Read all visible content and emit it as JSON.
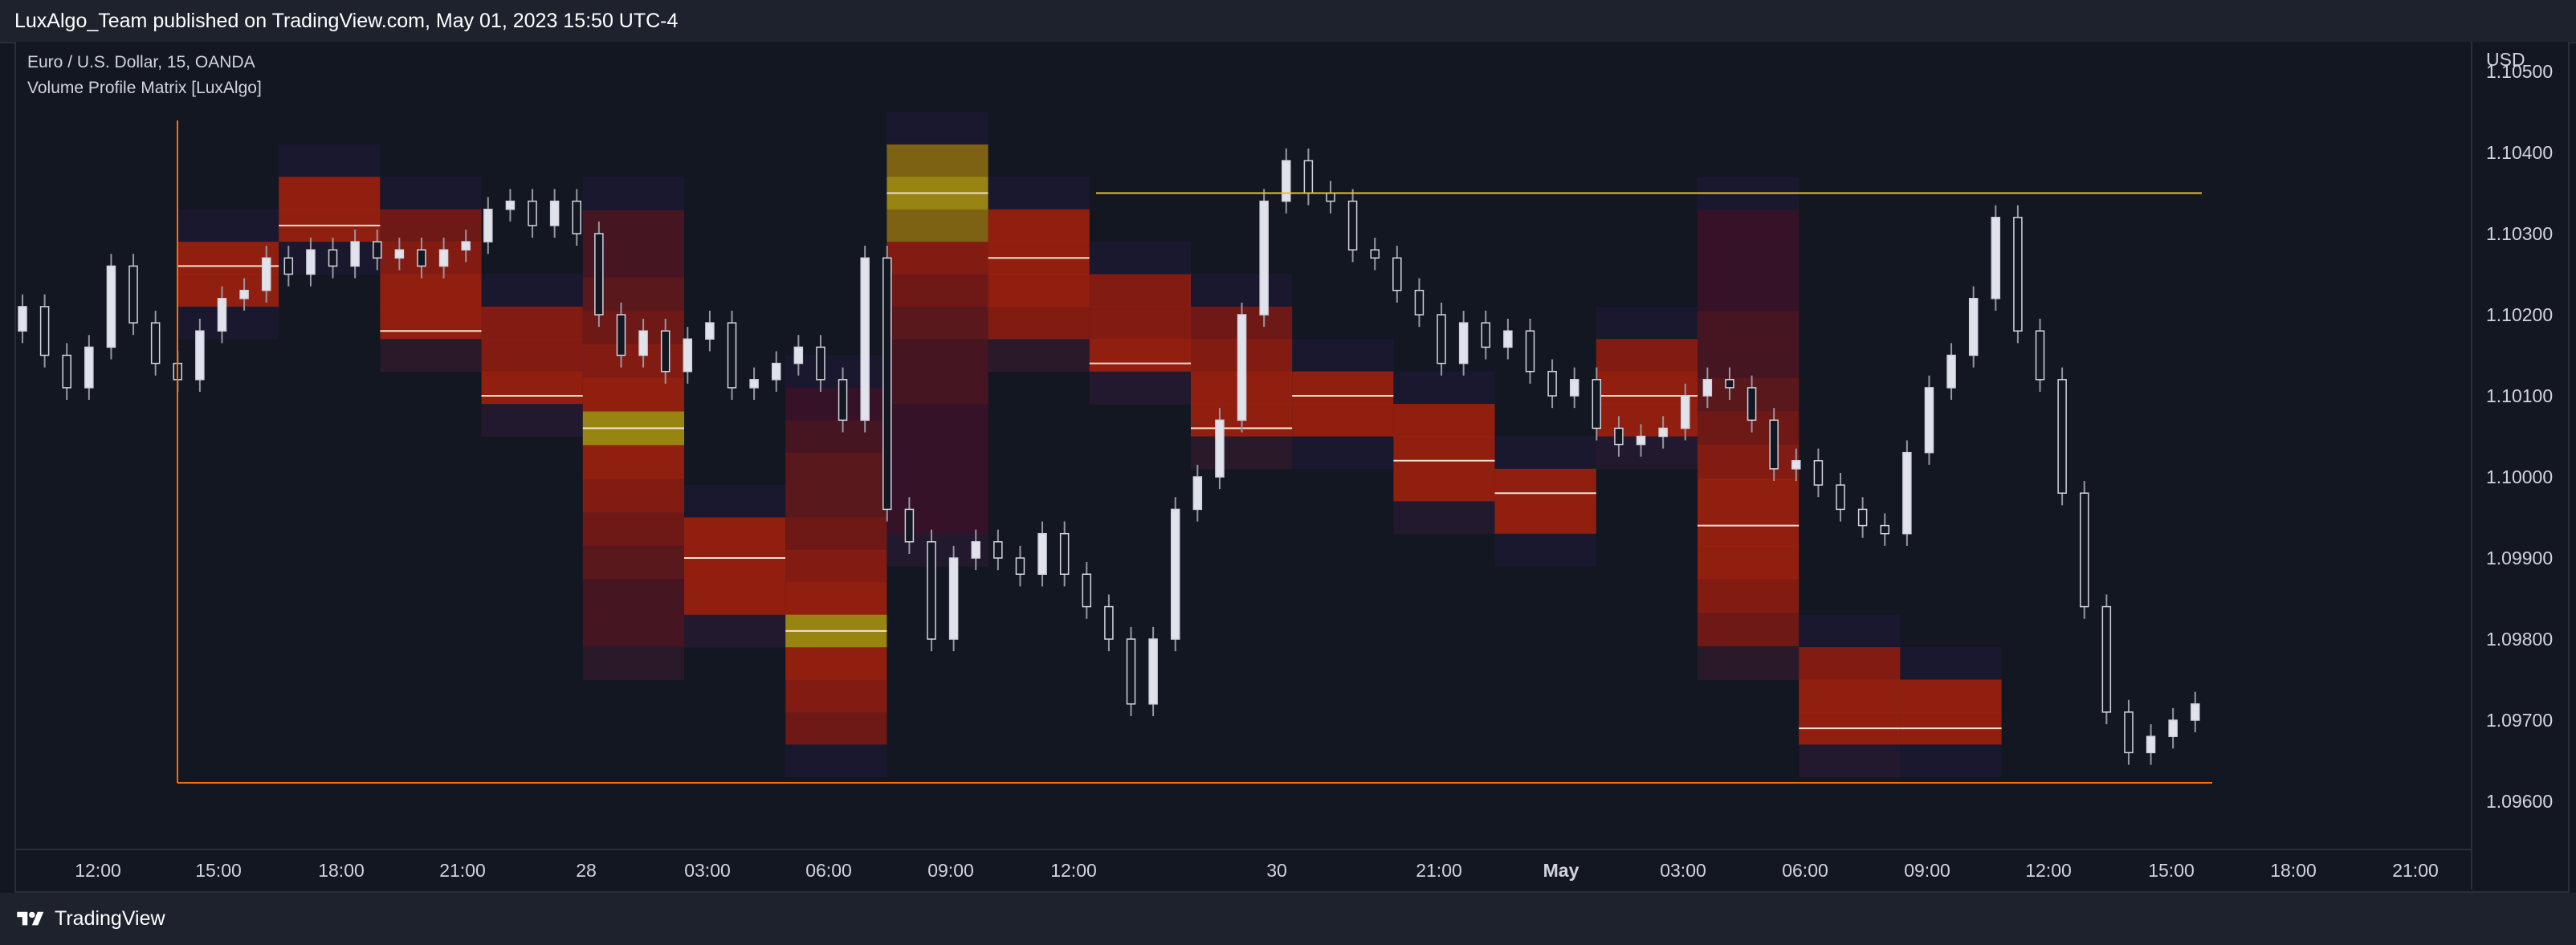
{
  "header": {
    "publish_text": "LuxAlgo_Team published on TradingView.com, May 01, 2023 15:50 UTC-4"
  },
  "legend": {
    "symbol": "Euro / U.S. Dollar, 15, OANDA",
    "indicator": "Volume Profile Matrix [LuxAlgo]"
  },
  "footer": {
    "brand": "TradingView"
  },
  "colors": {
    "background": "#131722",
    "panel": "#1e222d",
    "frame": "#ff6d00",
    "poc_line": "#e6c229",
    "candle": "#d1d4dc"
  },
  "chart_data": {
    "type": "candlestick",
    "title": "Euro / U.S. Dollar, 15, OANDA",
    "indicator": "Volume Profile Matrix [LuxAlgo]",
    "y_axis_unit": "USD",
    "ylim": [
      1.0955,
      1.1051
    ],
    "y_ticks": [
      "1.10500",
      "1.10400",
      "1.10300",
      "1.10200",
      "1.10100",
      "1.10000",
      "1.09900",
      "1.09800",
      "1.09700",
      "1.09600"
    ],
    "x_ticks": [
      "12:00",
      "15:00",
      "18:00",
      "21:00",
      "28",
      "03:00",
      "06:00",
      "09:00",
      "12:00",
      "30",
      "21:00",
      "May",
      "03:00",
      "06:00",
      "09:00",
      "12:00",
      "15:00",
      "18:00",
      "21:00"
    ],
    "series": [
      {
        "name": "Volume Profile Matrix",
        "profiles": [
          {
            "from": 0,
            "to": 1,
            "price_low": 1.1017,
            "price_high": 1.1033,
            "poc": 1.1026
          },
          {
            "from": 1,
            "to": 2,
            "price_low": 1.1025,
            "price_high": 1.1041,
            "poc": 1.1031
          },
          {
            "from": 2,
            "to": 3,
            "price_low": 1.1013,
            "price_high": 1.1037,
            "poc": 1.1018
          },
          {
            "from": 3,
            "to": 4,
            "price_low": 1.1005,
            "price_high": 1.1025,
            "poc": 1.101
          },
          {
            "from": 4,
            "to": 5,
            "price_low": 1.0975,
            "price_high": 1.1037,
            "poc": 1.1006
          },
          {
            "from": 5,
            "to": 6,
            "price_low": 1.0979,
            "price_high": 1.0999,
            "poc": 1.099
          },
          {
            "from": 6,
            "to": 7,
            "price_low": 1.0963,
            "price_high": 1.1015,
            "poc": 1.0981
          },
          {
            "from": 7,
            "to": 8,
            "price_low": 1.0989,
            "price_high": 1.1045,
            "poc": 1.1035
          },
          {
            "from": 8,
            "to": 9,
            "price_low": 1.1013,
            "price_high": 1.1037,
            "poc": 1.1027
          },
          {
            "from": 9,
            "to": 10,
            "price_low": 1.1009,
            "price_high": 1.1029,
            "poc": 1.1014
          },
          {
            "from": 10,
            "to": 11,
            "price_low": 1.1001,
            "price_high": 1.1025,
            "poc": 1.1006
          },
          {
            "from": 11,
            "to": 12,
            "price_low": 1.1001,
            "price_high": 1.1017,
            "poc": 1.101
          },
          {
            "from": 12,
            "to": 13,
            "price_low": 1.0993,
            "price_high": 1.1013,
            "poc": 1.1002
          },
          {
            "from": 13,
            "to": 14,
            "price_low": 1.0989,
            "price_high": 1.1005,
            "poc": 1.0998
          },
          {
            "from": 14,
            "to": 15,
            "price_low": 1.1001,
            "price_high": 1.1021,
            "poc": 1.101
          },
          {
            "from": 15,
            "to": 16,
            "price_low": 1.0975,
            "price_high": 1.1037,
            "poc": 1.0994
          },
          {
            "from": 16,
            "to": 17,
            "price_low": 1.0963,
            "price_high": 1.0983,
            "poc": 1.0969
          },
          {
            "from": 17,
            "to": 18,
            "price_low": 1.0963,
            "price_high": 1.0979,
            "poc": 1.0969
          }
        ]
      },
      {
        "name": "POC level",
        "value": 1.1035
      }
    ],
    "price_closes": [
      1.1021,
      1.1015,
      1.1011,
      1.1016,
      1.1026,
      1.1019,
      1.1014,
      1.1012,
      1.1018,
      1.1022,
      1.1023,
      1.1027,
      1.1025,
      1.1028,
      1.1026,
      1.1029,
      1.1027,
      1.1028,
      1.1026,
      1.1028,
      1.1029,
      1.1033,
      1.1034,
      1.1031,
      1.1034,
      1.103,
      1.102,
      1.1015,
      1.1018,
      1.1013,
      1.1017,
      1.1019,
      1.1011,
      1.1012,
      1.1014,
      1.1016,
      1.1012,
      1.1007,
      1.1027,
      1.0996,
      1.0992,
      1.098,
      1.099,
      1.0992,
      1.099,
      1.0988,
      1.0993,
      1.0988,
      1.0984,
      1.098,
      1.0972,
      1.098,
      1.0996,
      1.1,
      1.1007,
      1.102,
      1.1034,
      1.1039,
      1.1035,
      1.1034,
      1.1028,
      1.1027,
      1.1023,
      1.102,
      1.1014,
      1.1019,
      1.1016,
      1.1018,
      1.1013,
      1.101,
      1.1012,
      1.1006,
      1.1004,
      1.1005,
      1.1006,
      1.101,
      1.1012,
      1.1011,
      1.1007,
      1.1001,
      1.1002,
      1.0999,
      1.0996,
      1.0994,
      1.0993,
      1.1003,
      1.1011,
      1.1015,
      1.1022,
      1.1032,
      1.1018,
      1.1012,
      1.0998,
      1.0984,
      1.0971,
      1.0966,
      1.0968,
      1.097,
      1.0972,
      1.0974,
      1.0969,
      1.0967
    ],
    "grid": "off",
    "legend": "top-left"
  }
}
